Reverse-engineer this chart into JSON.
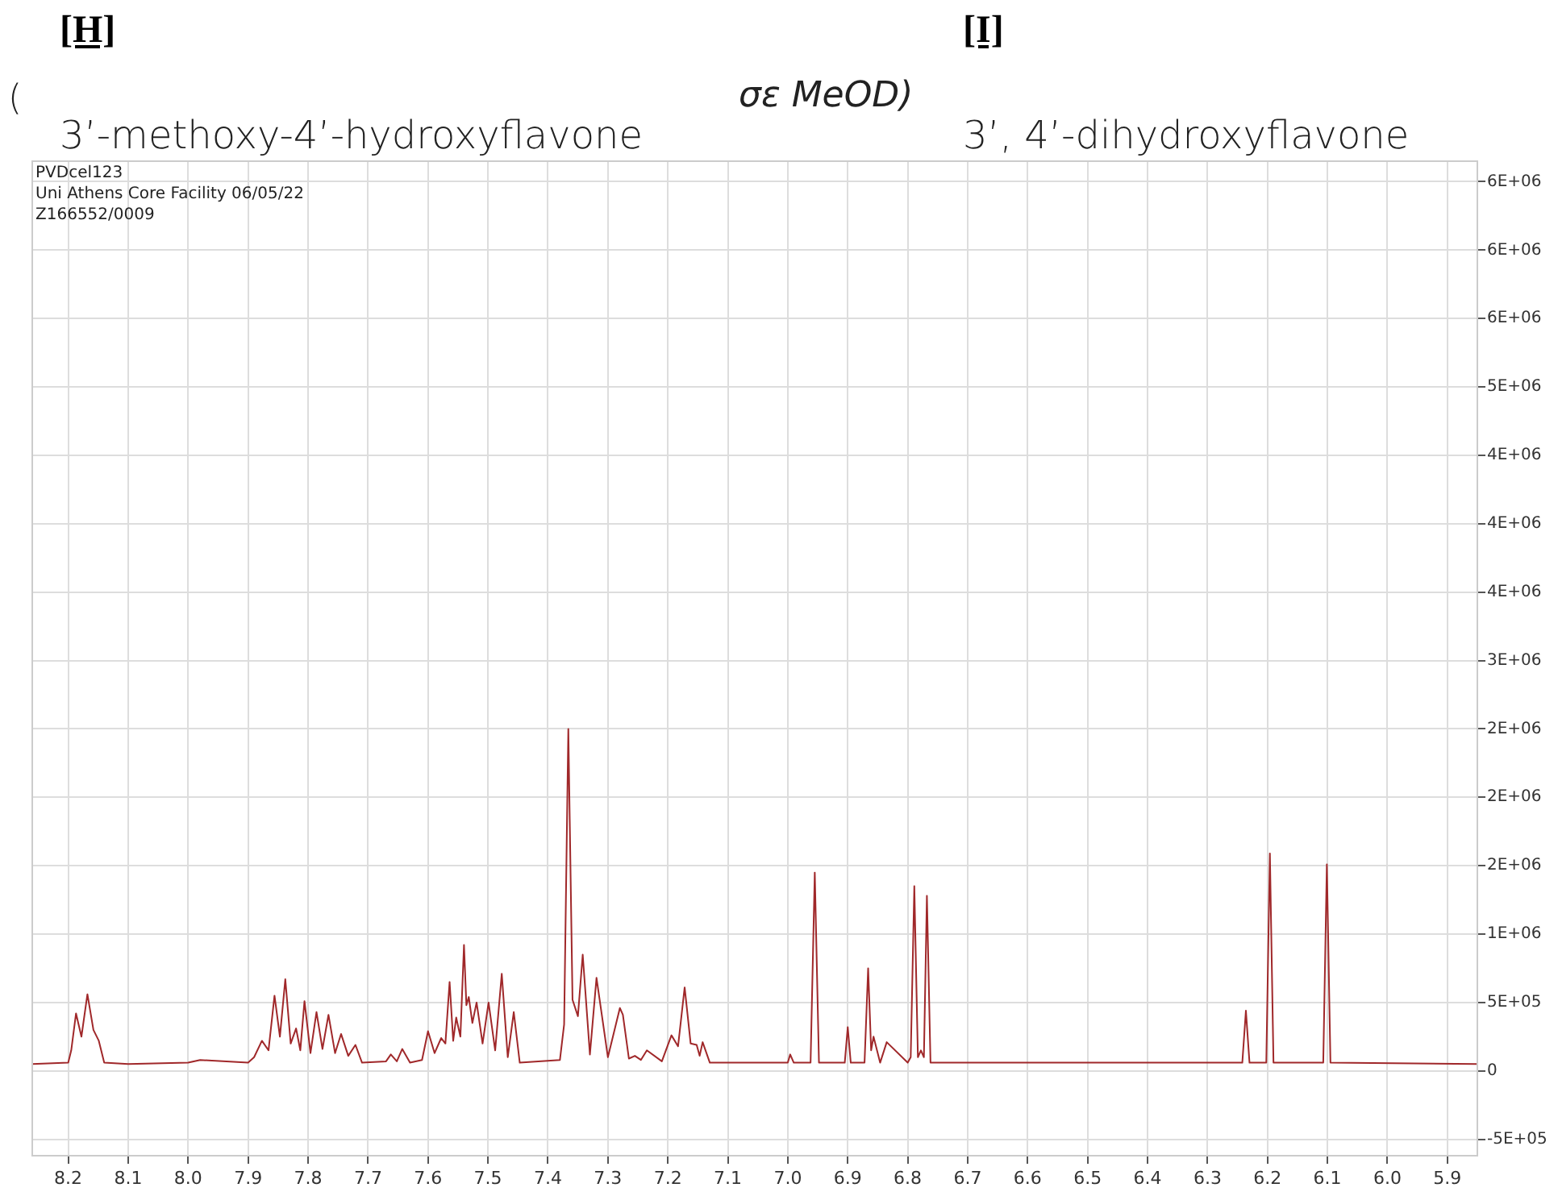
{
  "chart_data": {
    "type": "line",
    "title": "[H]",
    "subtitle": "[I]",
    "annotations": [
      "(",
      "σε MeOD)",
      "3’-methoxy-4’-hydroxyflavone",
      "3’, 4’-dihydroxyflavone",
      "PVDcel123",
      "Uni Athens Core Facility 06/05/22",
      "Z166552/0009"
    ],
    "xlim": [
      8.26,
      5.85
    ],
    "xticks": [
      8.2,
      8.1,
      {
        "value": 8,
        "label": "8.0"
      },
      7.9,
      7.8,
      7.7,
      7.6,
      7.5,
      7.4,
      7.3,
      7.2,
      7.1,
      {
        "value": 7,
        "label": "7.0"
      },
      6.9,
      6.8,
      6.7,
      6.6,
      6.5,
      6.4,
      6.3,
      6.2,
      6.1,
      {
        "value": 6,
        "label": "6.0"
      },
      5.9
    ],
    "ylim": [
      -620000,
      6650000
    ],
    "yticks": [
      {
        "value": -500000,
        "label": "-5E+05"
      },
      0,
      {
        "value": 500000,
        "label": "5E+05"
      },
      {
        "value": 1000000,
        "label": "1E+06"
      },
      {
        "value": 1500000,
        "label": "2E+06"
      },
      {
        "value": 2000000,
        "label": "2E+06"
      },
      {
        "value": 2500000,
        "label": "2E+06"
      },
      {
        "value": 3000000,
        "label": "3E+06"
      },
      {
        "value": 3500000,
        "label": "4E+06"
      },
      {
        "value": 4000000,
        "label": "4E+06"
      },
      {
        "value": 4500000,
        "label": "4E+06"
      },
      {
        "value": 5000000,
        "label": "5E+06"
      },
      {
        "value": 5500000,
        "label": "6E+06"
      },
      {
        "value": 6000000,
        "label": "6E+06"
      },
      {
        "value": 6500000,
        "label": "6E+06"
      }
    ],
    "grid": true,
    "marker": "none",
    "line_style": "solid",
    "series": [
      {
        "color": "#a0282a",
        "x": [
          8.26,
          8.2,
          8.195,
          8.187,
          8.178,
          8.168,
          8.158,
          8.149,
          8.14,
          8.1,
          8.0,
          7.98,
          7.9,
          7.89,
          7.877,
          7.866,
          7.856,
          7.847,
          7.838,
          7.829,
          7.82,
          7.813,
          7.806,
          7.796,
          7.786,
          7.776,
          7.766,
          7.755,
          7.745,
          7.733,
          7.721,
          7.71,
          7.67,
          7.662,
          7.652,
          7.643,
          7.63,
          7.61,
          7.6,
          7.589,
          7.578,
          7.571,
          7.564,
          7.558,
          7.553,
          7.546,
          7.54,
          7.536,
          7.532,
          7.526,
          7.519,
          7.509,
          7.499,
          7.488,
          7.477,
          7.467,
          7.457,
          7.447,
          7.38,
          7.373,
          7.366,
          7.359,
          7.35,
          7.342,
          7.33,
          7.319,
          7.3,
          7.28,
          7.275,
          7.265,
          7.255,
          7.245,
          7.235,
          7.21,
          7.194,
          7.183,
          7.172,
          7.162,
          7.152,
          7.147,
          7.142,
          7.13,
          7.0,
          6.996,
          6.99,
          6.962,
          6.955,
          6.948,
          6.905,
          6.9,
          6.895,
          6.872,
          6.866,
          6.861,
          6.857,
          6.846,
          6.835,
          6.8,
          6.795,
          6.789,
          6.783,
          6.778,
          6.773,
          6.768,
          6.762,
          6.3,
          6.242,
          6.236,
          6.23,
          6.202,
          6.196,
          6.19,
          6.107,
          6.101,
          6.095,
          5.85
        ],
        "values": [
          50000,
          60000,
          150000,
          420000,
          250000,
          560000,
          300000,
          220000,
          60000,
          50000,
          60000,
          80000,
          60000,
          100000,
          220000,
          150000,
          550000,
          250000,
          670000,
          200000,
          310000,
          150000,
          510000,
          130000,
          430000,
          160000,
          410000,
          130000,
          270000,
          110000,
          190000,
          60000,
          70000,
          120000,
          70000,
          160000,
          60000,
          80000,
          290000,
          130000,
          240000,
          200000,
          650000,
          220000,
          390000,
          250000,
          920000,
          480000,
          540000,
          350000,
          500000,
          200000,
          500000,
          150000,
          710000,
          100000,
          430000,
          60000,
          80000,
          340000,
          2500000,
          520000,
          400000,
          850000,
          120000,
          680000,
          100000,
          460000,
          410000,
          90000,
          110000,
          80000,
          150000,
          70000,
          260000,
          180000,
          610000,
          200000,
          190000,
          110000,
          210000,
          60000,
          60000,
          120000,
          60000,
          60000,
          1450000,
          60000,
          60000,
          320000,
          60000,
          60000,
          750000,
          150000,
          250000,
          60000,
          210000,
          60000,
          100000,
          1350000,
          100000,
          150000,
          100000,
          1280000,
          60000,
          60000,
          60000,
          440000,
          60000,
          60000,
          1590000,
          60000,
          60000,
          1510000,
          60000,
          50000
        ]
      }
    ]
  }
}
